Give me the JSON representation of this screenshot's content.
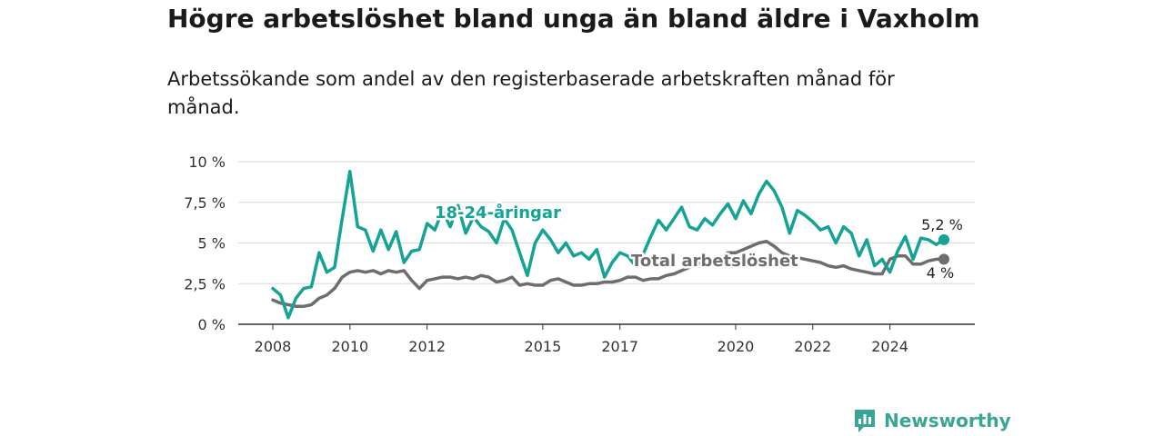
{
  "title": "Högre arbetslöshet bland unga än bland äldre i Vaxholm",
  "subtitle": "Arbetssökande som andel av den registerbaserade arbetskraften månad för månad.",
  "brand": {
    "name": "Newsworthy",
    "icon": "newsworthy-logo-icon",
    "color": "#3aa595"
  },
  "chart_data": {
    "type": "line",
    "title": "Högre arbetslöshet bland unga än bland äldre i Vaxholm",
    "subtitle": "Arbetssökande som andel av den registerbaserade arbetskraften månad för månad.",
    "xlabel": "",
    "ylabel": "",
    "ylim": [
      0,
      10
    ],
    "xlim": [
      2007.6,
      2025.7
    ],
    "y_ticks": [
      0,
      2.5,
      5,
      7.5,
      10
    ],
    "y_tick_labels": [
      "0 %",
      "2,5 %",
      "5 %",
      "7,5 %",
      "10 %"
    ],
    "x_ticks": [
      2008,
      2010,
      2012,
      2015,
      2017,
      2020,
      2022,
      2024
    ],
    "x_tick_labels": [
      "2008",
      "2010",
      "2012",
      "2015",
      "2017",
      "2020",
      "2022",
      "2024"
    ],
    "grid": true,
    "series": [
      {
        "name": "18-24-åringar",
        "color": "#14a395",
        "end_label": "5,2 %",
        "x": [
          2008.0,
          2008.2,
          2008.4,
          2008.6,
          2008.8,
          2009.0,
          2009.2,
          2009.4,
          2009.6,
          2009.8,
          2010.0,
          2010.2,
          2010.4,
          2010.6,
          2010.8,
          2011.0,
          2011.2,
          2011.4,
          2011.6,
          2011.8,
          2012.0,
          2012.2,
          2012.4,
          2012.6,
          2012.8,
          2013.0,
          2013.2,
          2013.4,
          2013.6,
          2013.8,
          2014.0,
          2014.2,
          2014.4,
          2014.6,
          2014.8,
          2015.0,
          2015.2,
          2015.4,
          2015.6,
          2015.8,
          2016.0,
          2016.2,
          2016.4,
          2016.6,
          2016.8,
          2017.0,
          2017.2,
          2017.4,
          2017.6,
          2017.8,
          2018.0,
          2018.2,
          2018.4,
          2018.6,
          2018.8,
          2019.0,
          2019.2,
          2019.4,
          2019.6,
          2019.8,
          2020.0,
          2020.2,
          2020.4,
          2020.6,
          2020.8,
          2021.0,
          2021.2,
          2021.4,
          2021.6,
          2021.8,
          2022.0,
          2022.2,
          2022.4,
          2022.6,
          2022.8,
          2023.0,
          2023.2,
          2023.4,
          2023.6,
          2023.8,
          2024.0,
          2024.2,
          2024.4,
          2024.6,
          2024.8,
          2025.0,
          2025.2,
          2025.4
        ],
        "values": [
          2.2,
          1.8,
          0.4,
          1.6,
          2.2,
          2.3,
          4.4,
          3.2,
          3.5,
          6.5,
          9.4,
          6.0,
          5.8,
          4.5,
          5.8,
          4.6,
          5.7,
          3.8,
          4.5,
          4.6,
          6.2,
          5.8,
          7.0,
          6.0,
          7.3,
          5.6,
          6.6,
          6.0,
          5.7,
          5.0,
          6.5,
          5.8,
          4.4,
          3.0,
          5.0,
          5.8,
          5.2,
          4.4,
          5.0,
          4.2,
          4.4,
          4.0,
          4.6,
          2.9,
          3.8,
          4.4,
          4.2,
          3.6,
          4.3,
          5.4,
          6.4,
          5.8,
          6.5,
          7.2,
          6.0,
          5.8,
          6.5,
          6.1,
          6.8,
          7.4,
          6.5,
          7.6,
          6.8,
          8.0,
          8.8,
          8.2,
          7.2,
          5.6,
          7.0,
          6.7,
          6.3,
          5.8,
          6.0,
          5.0,
          6.0,
          5.6,
          4.2,
          5.2,
          3.6,
          4.0,
          3.2,
          4.5,
          5.4,
          4.0,
          5.3,
          5.2,
          4.9,
          5.2
        ]
      },
      {
        "name": "Total arbetslöshet",
        "color": "#6e6e6e",
        "end_label": "4 %",
        "x": [
          2008.0,
          2008.2,
          2008.4,
          2008.6,
          2008.8,
          2009.0,
          2009.2,
          2009.4,
          2009.6,
          2009.8,
          2010.0,
          2010.2,
          2010.4,
          2010.6,
          2010.8,
          2011.0,
          2011.2,
          2011.4,
          2011.6,
          2011.8,
          2012.0,
          2012.2,
          2012.4,
          2012.6,
          2012.8,
          2013.0,
          2013.2,
          2013.4,
          2013.6,
          2013.8,
          2014.0,
          2014.2,
          2014.4,
          2014.6,
          2014.8,
          2015.0,
          2015.2,
          2015.4,
          2015.6,
          2015.8,
          2016.0,
          2016.2,
          2016.4,
          2016.6,
          2016.8,
          2017.0,
          2017.2,
          2017.4,
          2017.6,
          2017.8,
          2018.0,
          2018.2,
          2018.4,
          2018.6,
          2018.8,
          2019.0,
          2019.2,
          2019.4,
          2019.6,
          2019.8,
          2020.0,
          2020.2,
          2020.4,
          2020.6,
          2020.8,
          2021.0,
          2021.2,
          2021.4,
          2021.6,
          2021.8,
          2022.0,
          2022.2,
          2022.4,
          2022.6,
          2022.8,
          2023.0,
          2023.2,
          2023.4,
          2023.6,
          2023.8,
          2024.0,
          2024.2,
          2024.4,
          2024.6,
          2024.8,
          2025.0,
          2025.2,
          2025.4
        ],
        "values": [
          1.5,
          1.3,
          1.2,
          1.1,
          1.1,
          1.2,
          1.6,
          1.8,
          2.2,
          2.9,
          3.2,
          3.3,
          3.2,
          3.3,
          3.1,
          3.3,
          3.2,
          3.3,
          2.7,
          2.2,
          2.7,
          2.8,
          2.9,
          2.9,
          2.8,
          2.9,
          2.8,
          3.0,
          2.9,
          2.6,
          2.7,
          2.9,
          2.4,
          2.5,
          2.4,
          2.4,
          2.7,
          2.8,
          2.6,
          2.4,
          2.4,
          2.5,
          2.5,
          2.6,
          2.6,
          2.7,
          2.9,
          2.9,
          2.7,
          2.8,
          2.8,
          3.0,
          3.1,
          3.3,
          3.5,
          3.7,
          3.9,
          4.0,
          4.0,
          4.4,
          4.4,
          4.6,
          4.8,
          5.0,
          5.1,
          4.8,
          4.4,
          4.2,
          4.1,
          4.0,
          3.9,
          3.8,
          3.6,
          3.5,
          3.6,
          3.4,
          3.3,
          3.2,
          3.1,
          3.1,
          4.0,
          4.2,
          4.2,
          3.7,
          3.7,
          3.9,
          4.0,
          4.0
        ]
      }
    ]
  }
}
